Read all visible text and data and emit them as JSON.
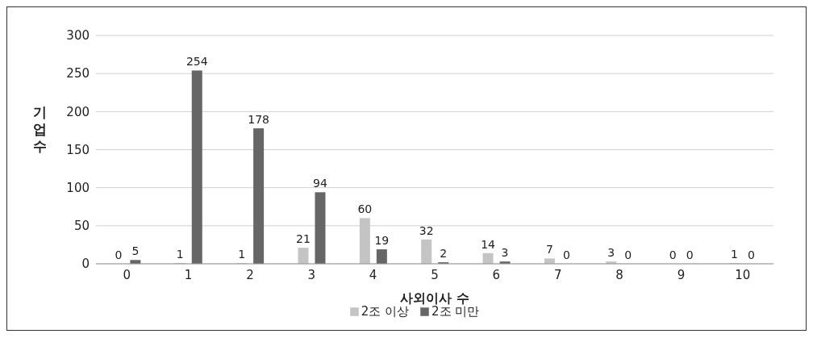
{
  "chart_data": {
    "type": "bar",
    "xlabel": "사외이사 수",
    "ylabel": "기업수",
    "categories": [
      "0",
      "1",
      "2",
      "3",
      "4",
      "5",
      "6",
      "7",
      "8",
      "9",
      "10"
    ],
    "series": [
      {
        "name": "2조 이상",
        "color": "#c4c4c4",
        "values": [
          0,
          1,
          1,
          21,
          60,
          32,
          14,
          7,
          3,
          0,
          1
        ]
      },
      {
        "name": "2조 미만",
        "color": "#666666",
        "values": [
          5,
          254,
          178,
          94,
          19,
          2,
          3,
          0,
          0,
          0,
          0
        ]
      }
    ],
    "ylim": [
      0,
      300
    ],
    "yticks": [
      0,
      50,
      100,
      150,
      200,
      250,
      300
    ],
    "grid": "y",
    "legend": "bottom",
    "data_labels": true
  }
}
